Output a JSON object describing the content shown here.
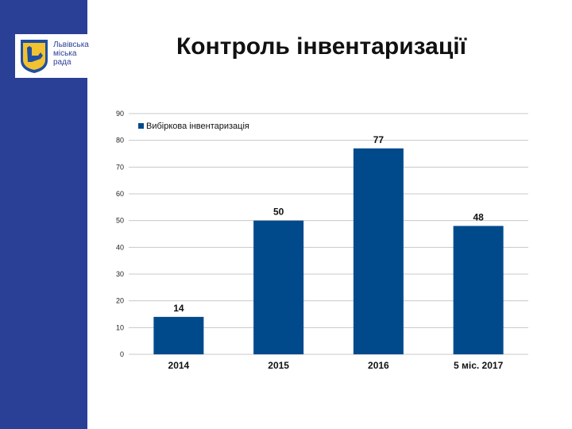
{
  "slide": {
    "title": "Контроль інвентаризації"
  },
  "logo": {
    "text": "Львівська\nміська\nрада"
  },
  "colors": {
    "sidebar": "#2a3f96",
    "bar": "#004a8c",
    "grid": "#c8c8c8"
  },
  "chart_data": {
    "type": "bar",
    "categories": [
      "2014",
      "2015",
      "2016",
      "5 міс. 2017"
    ],
    "series": [
      {
        "name": "Вибіркова інвентаризація",
        "values": [
          14,
          50,
          77,
          48
        ]
      }
    ],
    "data_labels": [
      "14",
      "50",
      "77",
      "48"
    ],
    "y_ticks": [
      "0",
      "10",
      "20",
      "30",
      "40",
      "50",
      "60",
      "70",
      "80",
      "90"
    ],
    "ylim": [
      0,
      90
    ],
    "grid": "horizontal",
    "legend": "top-left"
  }
}
